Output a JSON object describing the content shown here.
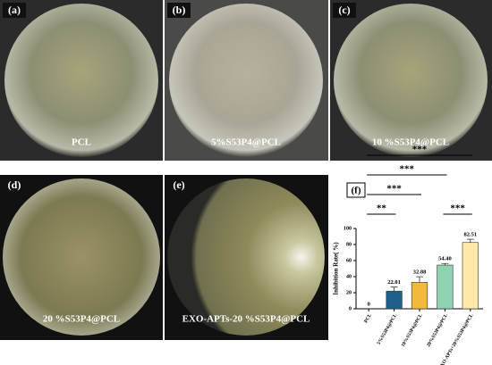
{
  "panels": [
    {
      "label": "(a)",
      "caption": "PCL"
    },
    {
      "label": "(b)",
      "caption": "5%S53P4@PCL"
    },
    {
      "label": "(c)",
      "caption": "10 %S53P4@PCL"
    },
    {
      "label": "(d)",
      "caption": "20 %S53P4@PCL"
    },
    {
      "label": "(e)",
      "caption": "EXO-APTs-20 %S53P4@PCL"
    }
  ],
  "chart_data": {
    "type": "bar",
    "panel_label": "(f)",
    "y_label": "Inhibition Rate( %)",
    "categories": [
      "PCL",
      "5%S53P4@PCL",
      "10%S53P4@PCL",
      "20%S53P4@PCL",
      "EXO-APTs+20%S53P4@PCL"
    ],
    "values": [
      0,
      22.01,
      32.88,
      54.4,
      82.51
    ],
    "value_labels": [
      "0",
      "22.01",
      "32.88",
      "54.40",
      "82.51"
    ],
    "errors": [
      0,
      5,
      7,
      2,
      4
    ],
    "colors": [
      "#ffffff",
      "#1f5f8b",
      "#f2b93b",
      "#8fd3b0",
      "#fde8a8"
    ],
    "ylim": [
      0,
      100
    ],
    "yticks": [
      0,
      20,
      40,
      60,
      80,
      100
    ],
    "significance": [
      {
        "from": 0,
        "to": 1,
        "label": "**"
      },
      {
        "from": 3,
        "to": 4,
        "label": "***"
      },
      {
        "from": 0,
        "to": 2,
        "label": "***"
      },
      {
        "from": 0,
        "to": 3,
        "label": "***"
      },
      {
        "from": 0,
        "to": 4,
        "label": "***"
      }
    ]
  }
}
